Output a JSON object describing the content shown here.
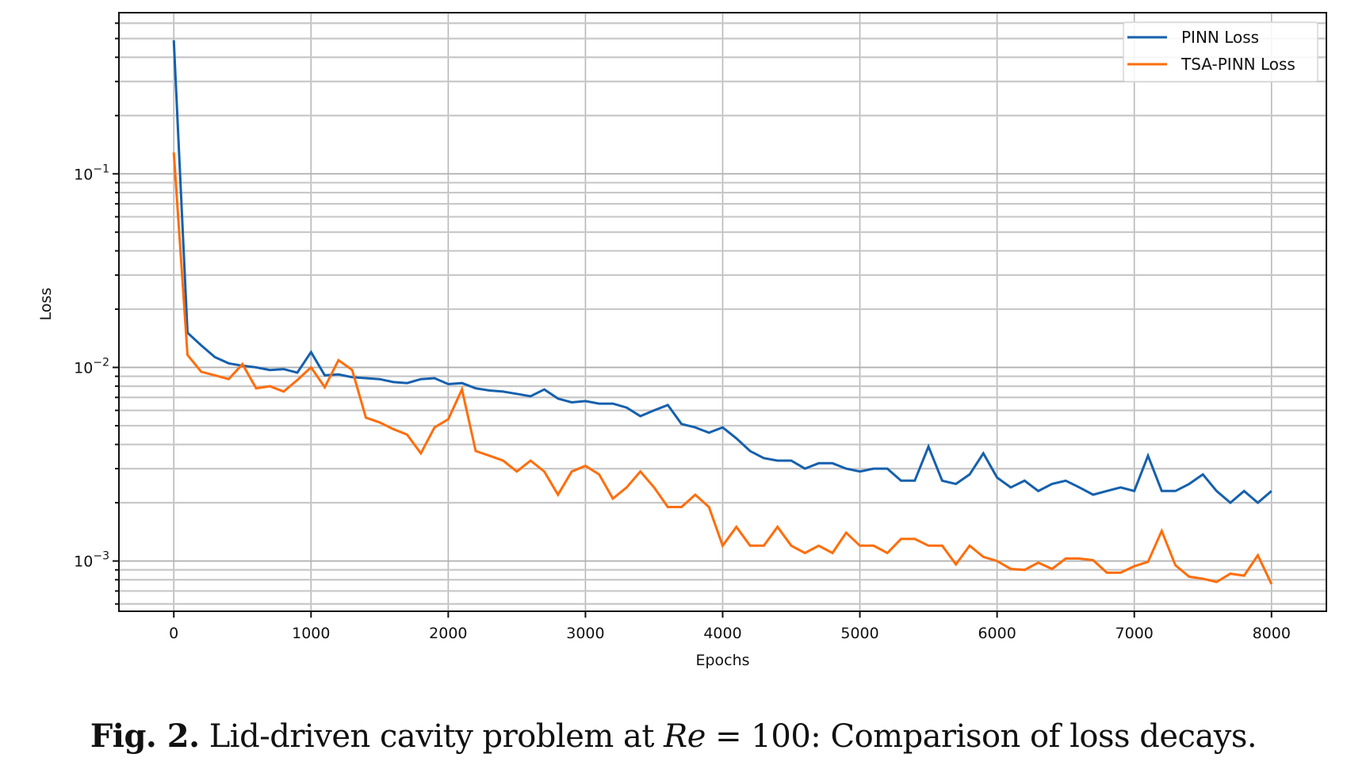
{
  "chart_data": {
    "type": "line",
    "title": "",
    "xlabel": "Epochs",
    "ylabel": "Loss",
    "yscale": "log",
    "xlim": [
      -400,
      8400
    ],
    "ylim": [
      0.00055,
      0.68
    ],
    "grid": true,
    "grid_minor_y": true,
    "legend_position": "top-right",
    "x_ticks": [
      0,
      1000,
      2000,
      3000,
      4000,
      5000,
      6000,
      7000,
      8000
    ],
    "x_tick_labels": [
      "0",
      "1000",
      "2000",
      "3000",
      "4000",
      "5000",
      "6000",
      "7000",
      "8000"
    ],
    "y_ticks": [
      0.1,
      0.01,
      0.001
    ],
    "y_tick_labels": [
      {
        "base": "10",
        "exp": "−1"
      },
      {
        "base": "10",
        "exp": "−2"
      },
      {
        "base": "10",
        "exp": "−3"
      }
    ],
    "x": [
      0,
      100,
      200,
      300,
      400,
      500,
      600,
      700,
      800,
      900,
      1000,
      1100,
      1200,
      1300,
      1400,
      1500,
      1600,
      1700,
      1800,
      1900,
      2000,
      2100,
      2200,
      2300,
      2400,
      2500,
      2600,
      2700,
      2800,
      2900,
      3000,
      3100,
      3200,
      3300,
      3400,
      3500,
      3600,
      3700,
      3800,
      3900,
      4000,
      4100,
      4200,
      4300,
      4400,
      4500,
      4600,
      4700,
      4800,
      4900,
      5000,
      5100,
      5200,
      5300,
      5400,
      5500,
      5600,
      5700,
      5800,
      5900,
      6000,
      6100,
      6200,
      6300,
      6400,
      6500,
      6600,
      6700,
      6800,
      6900,
      7000,
      7100,
      7200,
      7300,
      7400,
      7500,
      7600,
      7700,
      7800,
      7900,
      8000
    ],
    "series": [
      {
        "name": "PINN Loss",
        "color": "#1560ad",
        "values": [
          0.49,
          0.0151,
          0.013,
          0.0113,
          0.0105,
          0.0102,
          0.01,
          0.0097,
          0.0098,
          0.0094,
          0.012,
          0.0091,
          0.0092,
          0.0089,
          0.0088,
          0.0087,
          0.0084,
          0.0083,
          0.0087,
          0.0088,
          0.0082,
          0.0083,
          0.0078,
          0.0076,
          0.0075,
          0.0073,
          0.0071,
          0.0077,
          0.0069,
          0.0066,
          0.0067,
          0.0065,
          0.0065,
          0.0062,
          0.0056,
          0.006,
          0.0064,
          0.0051,
          0.0049,
          0.0046,
          0.0049,
          0.0043,
          0.0037,
          0.0034,
          0.0033,
          0.0033,
          0.003,
          0.0032,
          0.0032,
          0.003,
          0.0029,
          0.003,
          0.003,
          0.0026,
          0.0026,
          0.0039,
          0.0026,
          0.0025,
          0.0028,
          0.0036,
          0.0027,
          0.0024,
          0.0026,
          0.0023,
          0.0025,
          0.0026,
          0.0024,
          0.0022,
          0.0023,
          0.0024,
          0.0023,
          0.0035,
          0.0023,
          0.0023,
          0.0025,
          0.0028,
          0.0023,
          0.002,
          0.0023,
          0.002,
          0.0023
        ]
      },
      {
        "name": "TSA-PINN Loss",
        "color": "#ff6d0a",
        "values": [
          0.129,
          0.0116,
          0.0095,
          0.0091,
          0.0087,
          0.0104,
          0.0078,
          0.008,
          0.0075,
          0.0086,
          0.01,
          0.0079,
          0.0109,
          0.0097,
          0.0055,
          0.0052,
          0.0048,
          0.0045,
          0.0036,
          0.0049,
          0.0054,
          0.0077,
          0.0037,
          0.0035,
          0.0033,
          0.0029,
          0.0033,
          0.0029,
          0.0022,
          0.0029,
          0.0031,
          0.0028,
          0.0021,
          0.0024,
          0.0029,
          0.0024,
          0.0019,
          0.0019,
          0.0022,
          0.0019,
          0.0012,
          0.0015,
          0.0012,
          0.0012,
          0.0015,
          0.0012,
          0.0011,
          0.0012,
          0.0011,
          0.0014,
          0.0012,
          0.0012,
          0.0011,
          0.0013,
          0.0013,
          0.0012,
          0.0012,
          0.00096,
          0.0012,
          0.00105,
          0.001,
          0.00091,
          0.0009,
          0.00098,
          0.00091,
          0.00103,
          0.00103,
          0.00101,
          0.00087,
          0.00087,
          0.00094,
          0.00099,
          0.00143,
          0.00095,
          0.00083,
          0.00081,
          0.00078,
          0.00086,
          0.00084,
          0.00107,
          0.00076
        ]
      }
    ]
  },
  "caption": {
    "fig_label": "Fig. 2.",
    "text_before": " Lid-driven cavity problem at ",
    "math_var": "Re",
    "math_rest": " = 100",
    "text_after": ": Comparison of loss decays."
  }
}
